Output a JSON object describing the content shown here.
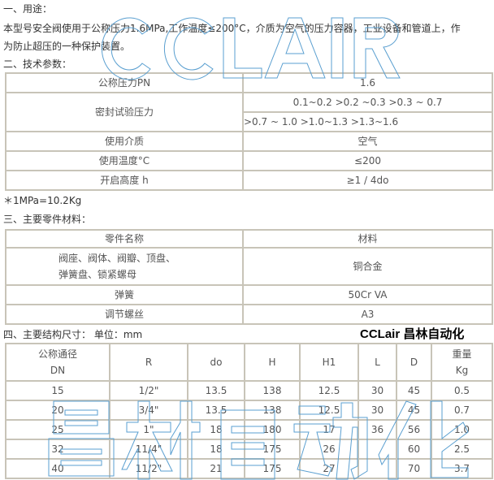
{
  "sections": {
    "usage_heading": "一、用途：",
    "usage_line1": "本型号安全阀使用于公称压力1.6MPa,工作温度≤200°C，介质为空气的压力容器，工业设备和管道上，作",
    "usage_line2": "为防止超压的一种保护装置。",
    "tech_heading": "二、技术参数：",
    "note": "＊1MPa=10.2Kg",
    "parts_heading": "三、主要零件材料：",
    "dims_heading": "四、主要结构尺寸：  单位：mm"
  },
  "tech_table": {
    "pn_label": "公称压力PN",
    "pn_value": "1.6",
    "seal_label": "密封试验压力",
    "seal_value1": "0.1~0.2 >0.2 ~0.3 >0.3 ~ 0.7",
    "seal_value2": ">0.7 ~ 1.0 >1.0~1.3 >1.3~1.6",
    "medium_label": "使用介质",
    "medium_value": "空气",
    "temp_label": "使用温度°C",
    "temp_value": "≤200",
    "lift_label": "开启高度 h",
    "lift_value": "≥1 / 4do"
  },
  "parts_table": {
    "header": [
      "零件名称",
      "材料"
    ],
    "rows": [
      {
        "name1": "阀座、阀体、阀瓣、顶盘、",
        "name2": "弹簧盘、锁紧螺母",
        "material": "铜合金"
      },
      {
        "name1": "弹簧",
        "material": "50Cr VA"
      },
      {
        "name1": "调节螺丝",
        "material": "A3"
      }
    ]
  },
  "dims_table": {
    "header": {
      "dn1": "公称通径",
      "dn2": "DN",
      "r": "R",
      "do": "do",
      "h": "H",
      "h1": "H1",
      "l": "L",
      "d": "D",
      "w1": "重量",
      "w2": "Kg"
    },
    "rows": [
      [
        "15",
        "1/2\"",
        "13.5",
        "138",
        "12.5",
        "30",
        "45",
        "0.5"
      ],
      [
        "20",
        "3/4\"",
        "13.5",
        "138",
        "12.5",
        "30",
        "45",
        "0.7"
      ],
      [
        "25",
        "1\"",
        "18",
        "180",
        "17",
        "36",
        "56",
        "1.0"
      ],
      [
        "32",
        "11/4\"",
        "18",
        "175",
        "26",
        "",
        "60",
        "2.5"
      ],
      [
        "40",
        "11/2\"",
        "21",
        "175",
        "27",
        "",
        "70",
        "3.7"
      ]
    ]
  },
  "watermarks": {
    "top": "CCLAIR",
    "bottom": "昌林自动化",
    "brand": "CCLair 昌林自动化"
  },
  "colors": {
    "watermark": "#5a9fd0",
    "border": "#c8c4b8"
  }
}
